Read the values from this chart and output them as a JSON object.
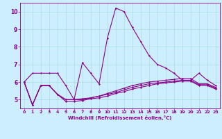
{
  "xlabel": "Windchill (Refroidissement éolien,°C)",
  "bg_color": "#cceeff",
  "line_color": "#880088",
  "grid_color": "#aadddd",
  "xlim": [
    -0.5,
    23.5
  ],
  "ylim": [
    4.5,
    10.5
  ],
  "yticks": [
    5,
    6,
    7,
    8,
    9,
    10
  ],
  "xticks": [
    0,
    1,
    2,
    3,
    4,
    5,
    6,
    7,
    8,
    9,
    10,
    11,
    12,
    13,
    14,
    15,
    16,
    17,
    18,
    19,
    20,
    21,
    22,
    23
  ],
  "lines": [
    {
      "x": [
        0,
        1,
        2,
        3,
        4,
        5,
        6,
        7,
        8,
        9,
        10,
        11,
        12,
        13,
        14,
        15,
        16,
        17,
        18,
        19,
        20,
        21,
        22,
        23
      ],
      "y": [
        6.0,
        6.5,
        6.5,
        6.5,
        6.5,
        5.8,
        5.0,
        7.1,
        6.5,
        5.9,
        8.5,
        10.2,
        10.0,
        9.1,
        8.3,
        7.5,
        7.0,
        6.8,
        6.5,
        6.1,
        6.1,
        6.5,
        6.1,
        5.8
      ]
    },
    {
      "x": [
        0,
        1,
        2,
        3,
        4,
        5,
        6,
        7,
        8,
        9,
        10,
        11,
        12,
        13,
        14,
        15,
        16,
        17,
        18,
        19,
        20,
        21,
        22,
        23
      ],
      "y": [
        6.0,
        4.7,
        5.8,
        5.8,
        5.3,
        5.0,
        5.0,
        5.05,
        5.1,
        5.2,
        5.35,
        5.5,
        5.65,
        5.8,
        5.9,
        6.0,
        6.05,
        6.1,
        6.15,
        6.2,
        6.2,
        5.9,
        5.9,
        5.7
      ]
    },
    {
      "x": [
        0,
        1,
        2,
        3,
        4,
        5,
        6,
        7,
        8,
        9,
        10,
        11,
        12,
        13,
        14,
        15,
        16,
        17,
        18,
        19,
        20,
        21,
        22,
        23
      ],
      "y": [
        6.0,
        4.7,
        5.8,
        5.8,
        5.3,
        5.0,
        5.0,
        5.0,
        5.1,
        5.2,
        5.3,
        5.4,
        5.55,
        5.7,
        5.8,
        5.9,
        5.95,
        6.0,
        6.05,
        6.1,
        6.1,
        5.85,
        5.85,
        5.65
      ]
    },
    {
      "x": [
        0,
        1,
        2,
        3,
        4,
        5,
        6,
        7,
        8,
        9,
        10,
        11,
        12,
        13,
        14,
        15,
        16,
        17,
        18,
        19,
        20,
        21,
        22,
        23
      ],
      "y": [
        6.0,
        4.7,
        5.8,
        5.8,
        5.3,
        4.9,
        4.9,
        4.95,
        5.05,
        5.1,
        5.2,
        5.35,
        5.45,
        5.6,
        5.7,
        5.8,
        5.9,
        5.95,
        6.0,
        6.05,
        6.05,
        5.8,
        5.8,
        5.6
      ]
    }
  ]
}
